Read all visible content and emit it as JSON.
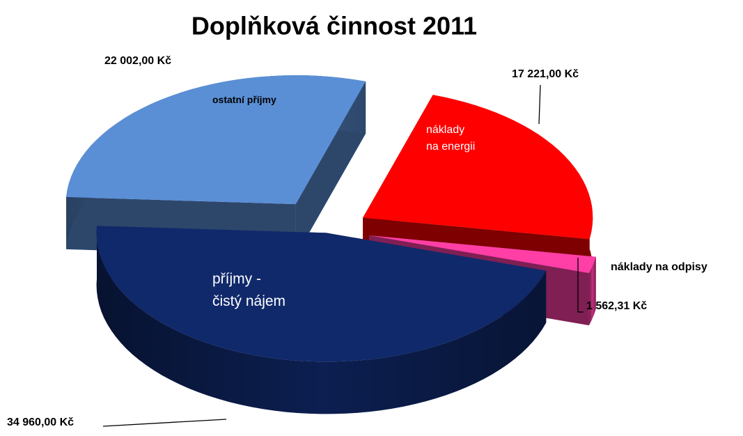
{
  "chart_data": {
    "type": "pie3d",
    "title": "Doplňková činnost 2011",
    "categories": [
      "příjmy -\nčistý nájem",
      "ostatní příjmy",
      "náklady\nna energii",
      "náklady na odpisy"
    ],
    "values": [
      34960,
      22002,
      17221,
      1562.31
    ],
    "value_labels": [
      "34 960,00 Kč",
      "22 002,00 Kč",
      "17 221,00 Kč",
      "1 562,31 Kč"
    ],
    "colors": [
      "#10296b",
      "#5a8fd6",
      "#ff0000",
      "#ff3fa6"
    ]
  }
}
